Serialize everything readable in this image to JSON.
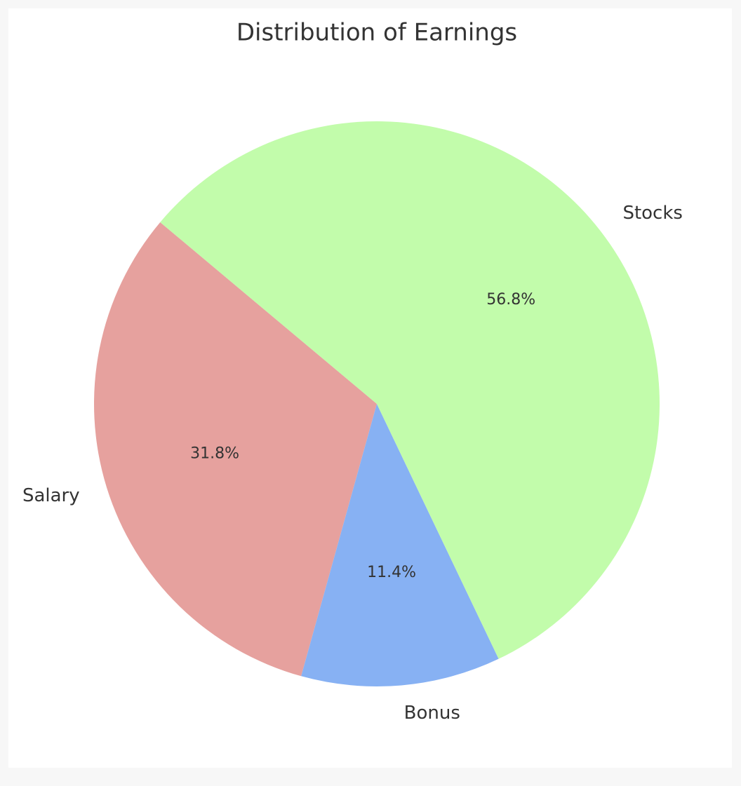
{
  "chart_data": {
    "type": "pie",
    "title": "Distribution of Earnings",
    "categories": [
      "Salary",
      "Bonus",
      "Stocks"
    ],
    "values": [
      31.8,
      11.4,
      56.8
    ],
    "value_labels": [
      "31.8%",
      "11.4%",
      "56.8%"
    ],
    "colors": [
      "#e6a19e",
      "#87b1f3",
      "#c2fcab"
    ],
    "startangle": 140
  }
}
